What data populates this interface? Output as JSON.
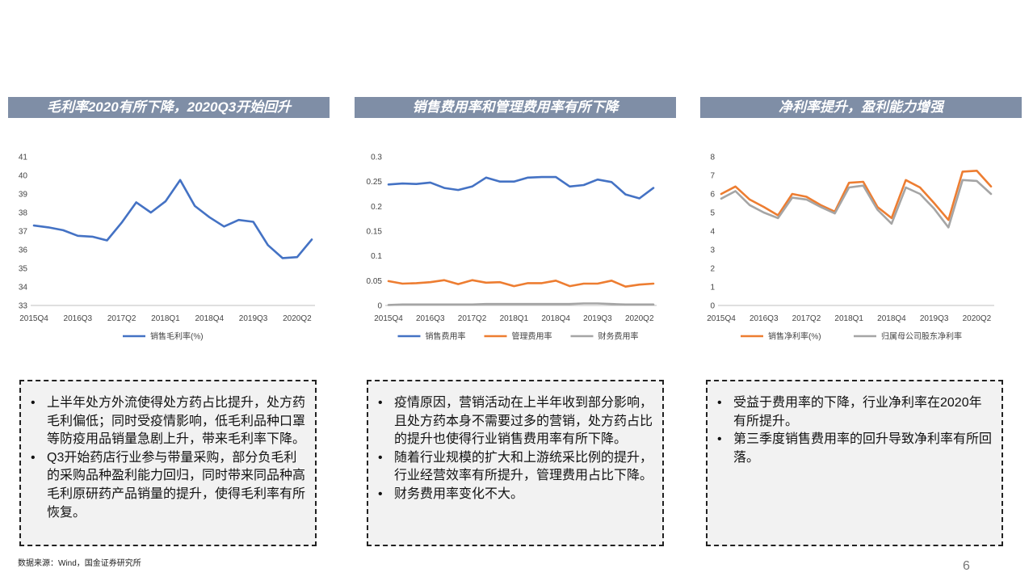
{
  "panels": [
    {
      "header": "毛利率2020有所下降，2020Q3开始回升",
      "chart_data": {
        "type": "line",
        "categories": [
          "2015Q4",
          "2016Q1",
          "2016Q2",
          "2016Q3",
          "2016Q4",
          "2017Q1",
          "2017Q2",
          "2017Q3",
          "2017Q4",
          "2018Q1",
          "2018Q2",
          "2018Q3",
          "2018Q4",
          "2019Q1",
          "2019Q2",
          "2019Q3",
          "2019Q4",
          "2020Q1",
          "2020Q2",
          "2020Q3"
        ],
        "x_tick_labels": [
          "2015Q4",
          "2016Q3",
          "2017Q2",
          "2018Q1",
          "2018Q4",
          "2019Q3",
          "2020Q2"
        ],
        "ylim": [
          33,
          41
        ],
        "y_ticks": [
          "33",
          "34",
          "35",
          "36",
          "37",
          "38",
          "39",
          "40",
          "41"
        ],
        "series": [
          {
            "name": "销售毛利率(%)",
            "color": "#4472c4",
            "values": [
              37.3,
              37.2,
              37.05,
              36.75,
              36.7,
              36.5,
              37.45,
              38.55,
              38.0,
              38.6,
              39.75,
              38.35,
              37.75,
              37.25,
              37.6,
              37.5,
              36.25,
              35.55,
              35.6,
              36.55
            ]
          }
        ]
      },
      "notes": [
        "上半年处方外流使得处方药占比提升，处方药毛利偏低；同时受疫情影响，低毛利品种口罩等防疫用品销量急剧上升，带来毛利率下降。",
        "Q3开始药店行业参与带量采购，部分负毛利的采购品种盈利能力回归，同时带来同品种高毛利原研药产品销量的提升，使得毛利率有所恢复。"
      ]
    },
    {
      "header": "销售费用率和管理费用率有所下降",
      "chart_data": {
        "type": "line",
        "categories": [
          "2015Q4",
          "2016Q1",
          "2016Q2",
          "2016Q3",
          "2016Q4",
          "2017Q1",
          "2017Q2",
          "2017Q3",
          "2017Q4",
          "2018Q1",
          "2018Q2",
          "2018Q3",
          "2018Q4",
          "2019Q1",
          "2019Q2",
          "2019Q3",
          "2019Q4",
          "2020Q1",
          "2020Q2",
          "2020Q3"
        ],
        "x_tick_labels": [
          "2015Q4",
          "2016Q3",
          "2017Q2",
          "2018Q1",
          "2018Q4",
          "2019Q3",
          "2020Q2"
        ],
        "ylim": [
          0,
          0.3
        ],
        "y_ticks": [
          "0",
          "0.05",
          "0.1",
          "0.15",
          "0.2",
          "0.25",
          "0.3"
        ],
        "series": [
          {
            "name": "销售费用率",
            "color": "#4472c4",
            "values": [
              0.244,
              0.246,
              0.245,
              0.248,
              0.237,
              0.233,
              0.24,
              0.258,
              0.25,
              0.25,
              0.258,
              0.259,
              0.259,
              0.24,
              0.243,
              0.254,
              0.249,
              0.224,
              0.216,
              0.237
            ]
          },
          {
            "name": "管理费用率",
            "color": "#ed7d31",
            "values": [
              0.049,
              0.044,
              0.045,
              0.047,
              0.051,
              0.043,
              0.051,
              0.046,
              0.047,
              0.039,
              0.045,
              0.045,
              0.05,
              0.039,
              0.044,
              0.044,
              0.05,
              0.038,
              0.042,
              0.044
            ]
          },
          {
            "name": "财务费用率",
            "color": "#a5a5a5",
            "values": [
              0.001,
              0.002,
              0.002,
              0.002,
              0.002,
              0.002,
              0.002,
              0.003,
              0.003,
              0.003,
              0.003,
              0.003,
              0.003,
              0.003,
              0.004,
              0.004,
              0.003,
              0.002,
              0.002,
              0.002
            ]
          }
        ]
      },
      "notes": [
        "疫情原因，营销活动在上半年收到部分影响，且处方药本身不需要过多的营销，处方药占比的提升也使得行业销售费用率有所下降。",
        "随着行业规模的扩大和上游统采比例的提升，行业经营效率有所提升，管理费用占比下降。",
        "财务费用率变化不大。"
      ]
    },
    {
      "header": "净利率提升，盈利能力增强",
      "chart_data": {
        "type": "line",
        "categories": [
          "2015Q4",
          "2016Q1",
          "2016Q2",
          "2016Q3",
          "2016Q4",
          "2017Q1",
          "2017Q2",
          "2017Q3",
          "2017Q4",
          "2018Q1",
          "2018Q2",
          "2018Q3",
          "2018Q4",
          "2019Q1",
          "2019Q2",
          "2019Q3",
          "2019Q4",
          "2020Q1",
          "2020Q2",
          "2020Q3"
        ],
        "x_tick_labels": [
          "2015Q4",
          "2016Q3",
          "2017Q2",
          "2018Q1",
          "2018Q4",
          "2019Q3",
          "2020Q2"
        ],
        "ylim": [
          0,
          8
        ],
        "y_ticks": [
          "0",
          "1",
          "2",
          "3",
          "4",
          "5",
          "6",
          "7",
          "8"
        ],
        "series": [
          {
            "name": "销售净利率(%)",
            "color": "#ed7d31",
            "values": [
              6.0,
              6.4,
              5.7,
              5.3,
              4.85,
              6.0,
              5.85,
              5.4,
              5.05,
              6.6,
              6.65,
              5.3,
              4.7,
              6.75,
              6.35,
              5.5,
              4.6,
              7.2,
              7.25,
              6.4
            ]
          },
          {
            "name": "归属母公司股东净利率",
            "color": "#a5a5a5",
            "values": [
              5.75,
              6.15,
              5.4,
              5.0,
              4.7,
              5.8,
              5.7,
              5.3,
              4.95,
              6.35,
              6.45,
              5.15,
              4.4,
              6.35,
              6.0,
              5.2,
              4.2,
              6.75,
              6.7,
              6.0
            ]
          }
        ]
      },
      "notes": [
        "受益于费用率的下降，行业净利率在2020年有所提升。",
        "第三季度销售费用率的回升导致净利率有所回落。"
      ]
    }
  ],
  "footer": {
    "source": "数据来源：Wind，国金证券研究所",
    "page_number": "6"
  }
}
